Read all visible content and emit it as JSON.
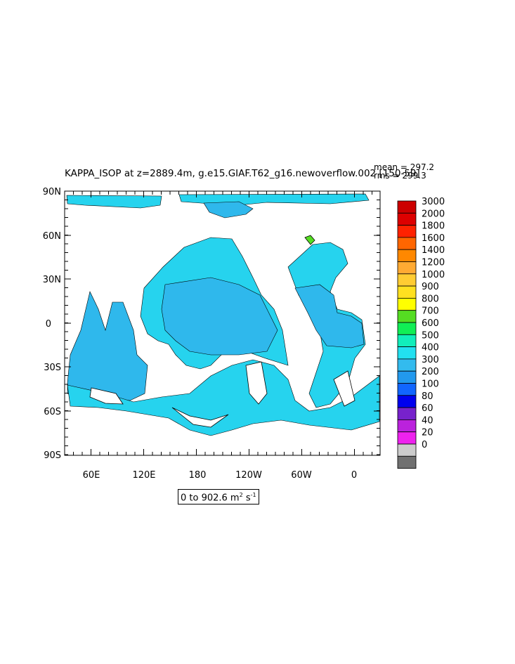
{
  "title": "KAPPA_ISOP at z=2889.4m, g.e15.GIAF.T62_g16.newoverflow.002 [150-59]",
  "stats": {
    "mean": "mean = 297.2",
    "rms": "rms = 299.3"
  },
  "range_label": {
    "prefix": "0 to 902.6 m",
    "unit_sup": "2",
    "mid": " s",
    "exp_sup": "-1"
  },
  "axes": {
    "y_ticks": [
      "90N",
      "60N",
      "30N",
      "0",
      "30S",
      "60S",
      "90S"
    ],
    "x_ticks": [
      "60E",
      "120E",
      "180",
      "120W",
      "60W",
      "0"
    ]
  },
  "colorbar": {
    "levels": [
      "3000",
      "2000",
      "1800",
      "1600",
      "1400",
      "1200",
      "1000",
      "900",
      "800",
      "700",
      "600",
      "500",
      "400",
      "300",
      "200",
      "100",
      "80",
      "60",
      "40",
      "20",
      "0"
    ],
    "colors": [
      "#cc0000",
      "#dd0000",
      "#ff2200",
      "#ff6600",
      "#ff8800",
      "#ffaa33",
      "#ffcc33",
      "#ffe020",
      "#ffff00",
      "#55dd22",
      "#11ee55",
      "#11eebb",
      "#22e0f0",
      "#33bbee",
      "#2299ee",
      "#1166ff",
      "#0000ee",
      "#7722cc",
      "#bb22dd",
      "#ee22ee",
      "#cccccc",
      "#707070"
    ]
  },
  "colors": {
    "ocean_fill": "#26d3ee",
    "ocean_mid": "#2fb8ec",
    "land": "#ffffff",
    "coast": "#000000"
  }
}
